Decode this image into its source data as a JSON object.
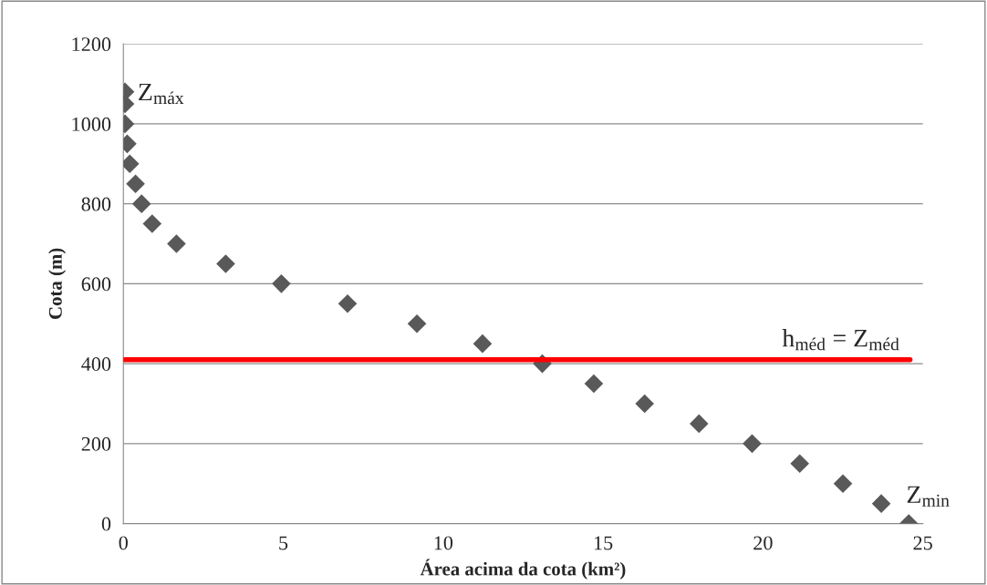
{
  "chart_data": {
    "type": "scatter",
    "xlabel": "Área acima da cota (km²)",
    "ylabel": "Cota (m)",
    "x": [
      0.05,
      0.05,
      0.05,
      0.12,
      0.2,
      0.38,
      0.57,
      0.9,
      1.66,
      3.2,
      4.94,
      7.01,
      9.18,
      11.23,
      13.1,
      14.71,
      16.3,
      18.0,
      19.66,
      21.15,
      22.5,
      23.7,
      24.56
    ],
    "series": [
      {
        "color": "#595959",
        "marker": "diamond",
        "values": [
          1080,
          1050,
          1000,
          950,
          900,
          850,
          800,
          750,
          700,
          650,
          600,
          550,
          500,
          450,
          400,
          350,
          300,
          250,
          200,
          150,
          100,
          50,
          0
        ]
      },
      {
        "type": "line",
        "color": "#ff0000",
        "x": [
          0,
          24.6
        ],
        "values": [
          410,
          410
        ]
      }
    ],
    "grid": "y",
    "legend": false,
    "xlim": [
      0,
      25
    ],
    "xticks": [
      0,
      5,
      10,
      15,
      20,
      25
    ],
    "ylim": [
      0,
      1200
    ],
    "yticks": [
      0,
      200,
      400,
      600,
      800,
      1000,
      1200
    ],
    "annotations": [
      {
        "text": "Z$_{máx}$",
        "x": 0.05,
        "y": 1080
      },
      {
        "text": "Z$_{min}$",
        "x": 24.56,
        "y": 0
      },
      {
        "text": "h$_{méd}$ = Z$_{méd}$",
        "x": 24.6,
        "y": 410
      }
    ]
  }
}
